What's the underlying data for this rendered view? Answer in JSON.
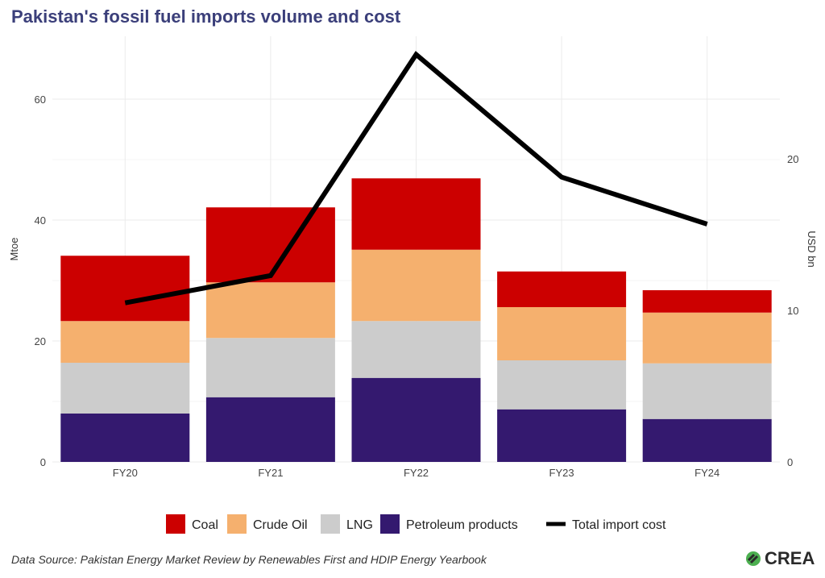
{
  "chart_data": {
    "type": "bar",
    "title": "Pakistan's fossil fuel imports volume and cost",
    "stacked": true,
    "categories": [
      "FY20",
      "FY21",
      "FY22",
      "FY23",
      "FY24"
    ],
    "ylabel": "Mtoe",
    "ylim": [
      0,
      70.4
    ],
    "yticks": [
      0,
      20,
      40,
      60
    ],
    "y2label": "USD bn",
    "y2lim": [
      0,
      28.1
    ],
    "y2ticks": [
      0,
      10,
      20
    ],
    "grid": true,
    "legend_position": "bottom",
    "series": [
      {
        "name": "Petroleum products",
        "color": "#34196f",
        "values": [
          8.0,
          10.7,
          13.9,
          8.7,
          7.1
        ]
      },
      {
        "name": "LNG",
        "color": "#cccccc",
        "values": [
          8.4,
          9.8,
          9.4,
          8.1,
          9.2
        ]
      },
      {
        "name": "Crude Oil",
        "color": "#f5b06e",
        "values": [
          6.9,
          9.2,
          11.8,
          8.8,
          8.4
        ]
      },
      {
        "name": "Coal",
        "color": "#cc0000",
        "values": [
          10.8,
          12.4,
          11.8,
          5.9,
          3.7
        ]
      }
    ],
    "line_series": {
      "name": "Total import cost",
      "color": "#000000",
      "axis": "right",
      "values": [
        10.5,
        12.3,
        26.9,
        18.8,
        15.7
      ]
    },
    "legend_order": [
      "Coal",
      "Crude Oil",
      "LNG",
      "Petroleum products",
      "Total import cost"
    ]
  },
  "footer": {
    "source": "Data Source: Pakistan Energy Market Review  by Renewables First and HDIP Energy Yearbook",
    "logo_text": "CREA"
  }
}
